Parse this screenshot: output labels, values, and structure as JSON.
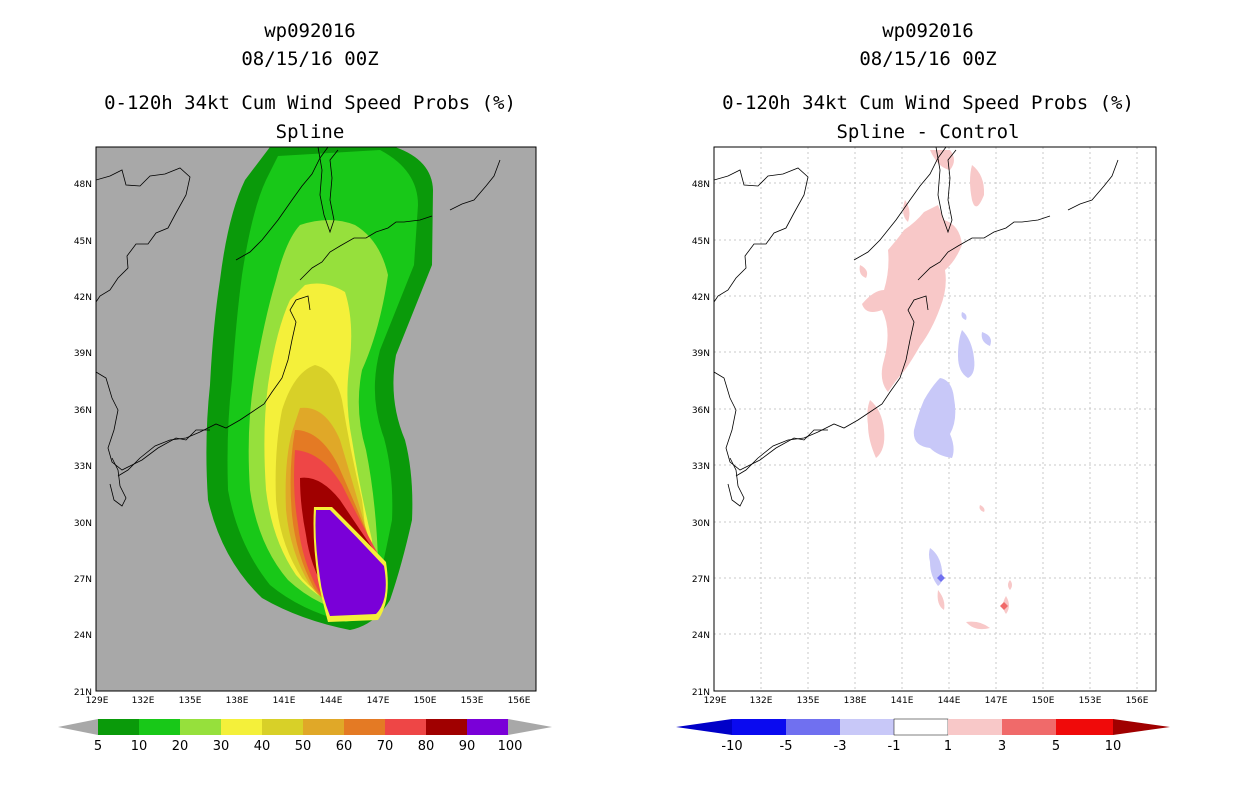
{
  "chart_data": [
    {
      "type": "heatmap",
      "title": [
        "wp092016",
        "08/15/16 00Z",
        "0-120h 34kt Cum Wind Speed Probs (%)",
        "Spline"
      ],
      "x_ticks": [
        "129E",
        "132E",
        "135E",
        "138E",
        "141E",
        "144E",
        "147E",
        "150E",
        "153E",
        "156E"
      ],
      "y_ticks": [
        "21N",
        "24N",
        "27N",
        "30N",
        "33N",
        "36N",
        "39N",
        "42N",
        "45N",
        "48N"
      ],
      "xlim": [
        129,
        157
      ],
      "ylim": [
        21,
        50
      ],
      "colorbar": {
        "labels": [
          "5",
          "10",
          "20",
          "30",
          "40",
          "50",
          "60",
          "70",
          "80",
          "90",
          "100"
        ],
        "colors": [
          "#0a9a0a",
          "#18c818",
          "#96e03c",
          "#f4f03a",
          "#d8d028",
          "#e0a828",
          "#e47a24",
          "#ee4646",
          "#a00000",
          "#7a00d8"
        ]
      },
      "background_color": "#a8a8a8"
    },
    {
      "type": "heatmap",
      "title": [
        "wp092016",
        "08/15/16 00Z",
        "0-120h 34kt Cum Wind Speed Probs (%)",
        "Spline - Control"
      ],
      "x_ticks": [
        "129E",
        "132E",
        "135E",
        "138E",
        "141E",
        "144E",
        "147E",
        "150E",
        "153E",
        "156E"
      ],
      "y_ticks": [
        "21N",
        "24N",
        "27N",
        "30N",
        "33N",
        "36N",
        "39N",
        "42N",
        "45N",
        "48N"
      ],
      "xlim": [
        129,
        157
      ],
      "ylim": [
        21,
        50
      ],
      "colorbar": {
        "labels": [
          "-10",
          "-5",
          "-3",
          "-1",
          "1",
          "3",
          "5",
          "10"
        ],
        "colors": [
          "#0000c8",
          "#0a0af0",
          "#7070f0",
          "#c8c8f8",
          "#ffffff",
          "#f8c8c8",
          "#f06a6a",
          "#f00a0a",
          "#a00000"
        ]
      },
      "background_color": "#ffffff"
    }
  ]
}
